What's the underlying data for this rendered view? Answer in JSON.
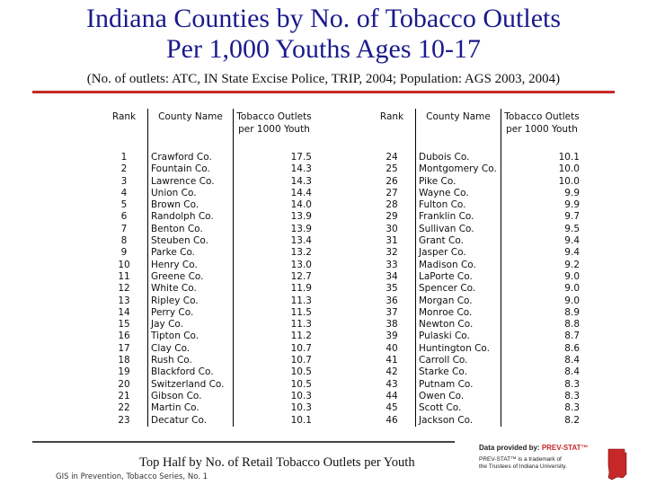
{
  "title": {
    "line1": "Indiana Counties by No. of Tobacco Outlets",
    "line2": "Per 1,000 Youths Ages 10-17"
  },
  "subtitle": "(No. of outlets: ATC, IN State Excise Police, TRIP, 2004; Population: AGS 2003, 2004)",
  "table": {
    "headers": {
      "rank": "Rank",
      "county": "County Name",
      "outlets_line1": "Tobacco Outlets",
      "outlets_line2": "per 1000 Youth"
    },
    "left_rows": [
      {
        "rank": "1",
        "county": "Crawford Co.",
        "value": "17.5"
      },
      {
        "rank": "2",
        "county": "Fountain Co.",
        "value": "14.3"
      },
      {
        "rank": "3",
        "county": "Lawrence Co.",
        "value": "14.3"
      },
      {
        "rank": "4",
        "county": "Union Co.",
        "value": "14.4"
      },
      {
        "rank": "5",
        "county": "Brown Co.",
        "value": "14.0"
      },
      {
        "rank": "6",
        "county": "Randolph Co.",
        "value": "13.9"
      },
      {
        "rank": "7",
        "county": "Benton Co.",
        "value": "13.9"
      },
      {
        "rank": "8",
        "county": "Steuben Co.",
        "value": "13.4"
      },
      {
        "rank": "9",
        "county": "Parke Co.",
        "value": "13.2"
      },
      {
        "rank": "10",
        "county": "Henry Co.",
        "value": "13.0"
      },
      {
        "rank": "11",
        "county": "Greene Co.",
        "value": "12.7"
      },
      {
        "rank": "12",
        "county": "White Co.",
        "value": "11.9"
      },
      {
        "rank": "13",
        "county": "Ripley Co.",
        "value": "11.3"
      },
      {
        "rank": "14",
        "county": "Perry Co.",
        "value": "11.5"
      },
      {
        "rank": "15",
        "county": "Jay Co.",
        "value": "11.3"
      },
      {
        "rank": "16",
        "county": "Tipton Co.",
        "value": "11.2"
      },
      {
        "rank": "17",
        "county": "Clay Co.",
        "value": "10.7"
      },
      {
        "rank": "18",
        "county": "Rush Co.",
        "value": "10.7"
      },
      {
        "rank": "19",
        "county": "Blackford Co.",
        "value": "10.5"
      },
      {
        "rank": "20",
        "county": "Switzerland Co.",
        "value": "10.5"
      },
      {
        "rank": "21",
        "county": "Gibson Co.",
        "value": "10.3"
      },
      {
        "rank": "22",
        "county": "Martin Co.",
        "value": "10.3"
      },
      {
        "rank": "23",
        "county": "Decatur Co.",
        "value": "10.1"
      }
    ],
    "right_rows": [
      {
        "rank": "24",
        "county": "Dubois Co.",
        "value": "10.1"
      },
      {
        "rank": "25",
        "county": "Montgomery Co.",
        "value": "10.0"
      },
      {
        "rank": "26",
        "county": "Pike Co.",
        "value": "10.0"
      },
      {
        "rank": "27",
        "county": "Wayne Co.",
        "value": "9.9"
      },
      {
        "rank": "28",
        "county": "Fulton Co.",
        "value": "9.9"
      },
      {
        "rank": "29",
        "county": "Franklin Co.",
        "value": "9.7"
      },
      {
        "rank": "30",
        "county": "Sullivan Co.",
        "value": "9.5"
      },
      {
        "rank": "31",
        "county": "Grant Co.",
        "value": "9.4"
      },
      {
        "rank": "32",
        "county": "Jasper Co.",
        "value": "9.4"
      },
      {
        "rank": "33",
        "county": "Madison Co.",
        "value": "9.2"
      },
      {
        "rank": "34",
        "county": "LaPorte Co.",
        "value": "9.0"
      },
      {
        "rank": "35",
        "county": "Spencer Co.",
        "value": "9.0"
      },
      {
        "rank": "36",
        "county": "Morgan Co.",
        "value": "9.0"
      },
      {
        "rank": "37",
        "county": "Monroe Co.",
        "value": "8.9"
      },
      {
        "rank": "38",
        "county": "Newton Co.",
        "value": "8.8"
      },
      {
        "rank": "39",
        "county": "Pulaski Co.",
        "value": "8.7"
      },
      {
        "rank": "40",
        "county": "Huntington Co.",
        "value": "8.6"
      },
      {
        "rank": "41",
        "county": "Carroll Co.",
        "value": "8.4"
      },
      {
        "rank": "42",
        "county": "Starke Co.",
        "value": "8.4"
      },
      {
        "rank": "43",
        "county": "Putnam Co.",
        "value": "8.3"
      },
      {
        "rank": "44",
        "county": "Owen Co.",
        "value": "8.3"
      },
      {
        "rank": "45",
        "county": "Scott Co.",
        "value": "8.3"
      },
      {
        "rank": "46",
        "county": "Jackson Co.",
        "value": "8.2"
      }
    ]
  },
  "caption": "Top Half by No. of Retail Tobacco Outlets per Youth",
  "series_label": "GIS in Prevention, Tobacco Series, No. 1",
  "logo": {
    "provided_by": "Data provided by:",
    "brand": "PREV-STAT™",
    "trademark_line1": "PREV-STAT™ is a trademark of",
    "trademark_line2": "the Trustees of Indiana University."
  },
  "colors": {
    "title": "#1a1a8c",
    "accent_rule": "#c62828"
  }
}
